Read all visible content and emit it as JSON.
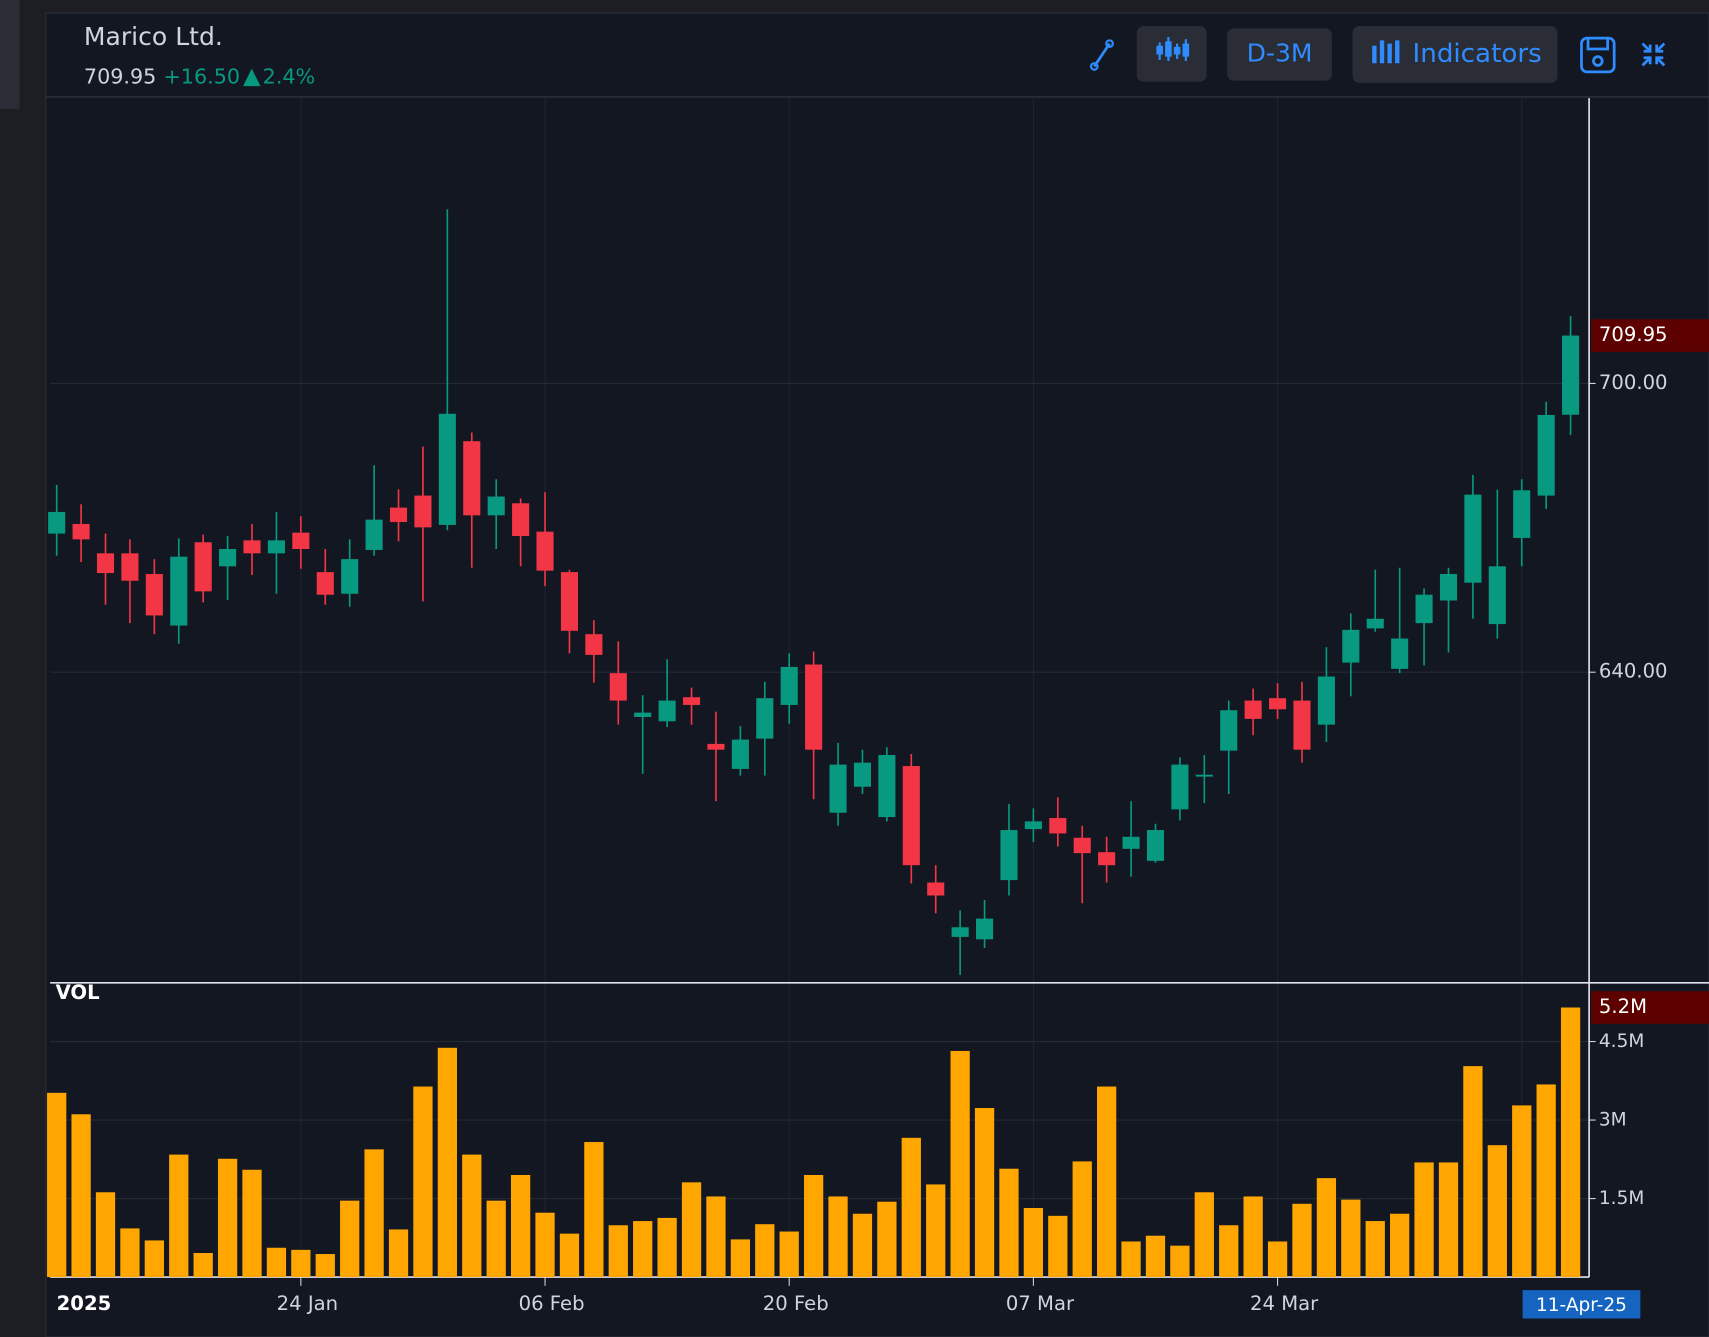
{
  "header": {
    "title": "Marico Ltd.",
    "change": {
      "value": 16.5,
      "label": "+16.50"
    },
    "change_pct": {
      "value": 2.4,
      "label": "2.4%"
    }
  },
  "toolbar": {
    "interval": "D-3M",
    "indicators": "Indicators"
  },
  "chart_data": {
    "type": "candlestick",
    "categories": [
      "2025",
      null,
      null,
      null,
      null,
      null,
      null,
      null,
      null,
      null,
      "24 Jan",
      null,
      null,
      null,
      null,
      null,
      null,
      null,
      null,
      null,
      "06 Feb",
      null,
      null,
      null,
      null,
      null,
      null,
      null,
      null,
      null,
      "20 Feb",
      null,
      null,
      null,
      null,
      null,
      null,
      null,
      null,
      null,
      "07 Mar",
      null,
      null,
      null,
      null,
      null,
      null,
      null,
      null,
      null,
      "24 Mar",
      null,
      null,
      null,
      null,
      null,
      null,
      null,
      null,
      null,
      null,
      null,
      "11-Apr-25"
    ],
    "open": [
      668.8,
      670.8,
      664.7,
      664.7,
      660.4,
      649.7,
      667.0,
      662.0,
      667.4,
      664.7,
      669.0,
      660.8,
      656.3,
      665.4,
      674.2,
      676.7,
      670.6,
      688.0,
      672.6,
      675.1,
      669.2,
      660.8,
      647.9,
      639.8,
      630.7,
      629.8,
      634.8,
      625.1,
      619.9,
      626.2,
      633.2,
      641.6,
      610.8,
      616.2,
      609.9,
      620.5,
      596.3,
      585.0,
      584.5,
      596.8,
      607.4,
      609.7,
      605.6,
      602.6,
      603.3,
      600.8,
      611.5,
      618.3,
      623.7,
      634.1,
      634.6,
      634.1,
      629.1,
      642.0,
      649.1,
      640.7,
      650.2,
      654.9,
      658.6,
      650.0,
      667.9,
      676.7,
      693.5
    ],
    "high": [
      678.9,
      674.9,
      668.8,
      667.6,
      663.5,
      667.8,
      668.6,
      668.3,
      670.8,
      673.3,
      672.4,
      665.6,
      667.6,
      683.0,
      678.0,
      686.9,
      736.2,
      689.8,
      680.1,
      676.1,
      677.4,
      661.3,
      650.8,
      646.4,
      635.2,
      642.7,
      636.8,
      631.8,
      628.8,
      638.0,
      643.9,
      644.3,
      625.3,
      623.9,
      624.4,
      623.0,
      599.9,
      590.5,
      592.7,
      612.6,
      611.7,
      614.0,
      608.1,
      605.8,
      613.2,
      608.5,
      622.3,
      622.8,
      634.1,
      636.6,
      637.7,
      638.0,
      645.2,
      652.2,
      661.3,
      661.7,
      657.4,
      661.7,
      681.0,
      677.9,
      680.1,
      696.2,
      714.0
    ],
    "low": [
      664.2,
      662.9,
      654.0,
      650.2,
      647.9,
      645.9,
      654.5,
      655.0,
      660.2,
      656.3,
      661.5,
      654.0,
      653.6,
      664.2,
      667.2,
      654.7,
      669.5,
      661.7,
      665.6,
      662.0,
      657.9,
      643.9,
      637.8,
      629.1,
      618.9,
      628.6,
      629.1,
      613.2,
      618.5,
      618.5,
      629.3,
      613.6,
      608.1,
      614.7,
      609.0,
      596.1,
      589.9,
      577.1,
      582.7,
      593.6,
      604.7,
      603.8,
      592.0,
      596.3,
      597.5,
      600.4,
      609.2,
      612.8,
      614.7,
      626.9,
      630.3,
      621.2,
      625.5,
      635.0,
      648.4,
      639.8,
      641.4,
      644.1,
      651.1,
      647.0,
      662.0,
      673.9,
      689.3
    ],
    "close": [
      673.3,
      667.6,
      660.6,
      659.0,
      651.8,
      664.0,
      656.8,
      665.6,
      664.7,
      667.4,
      665.6,
      656.1,
      663.5,
      671.7,
      671.2,
      670.1,
      693.7,
      672.6,
      676.5,
      668.3,
      661.1,
      648.6,
      643.6,
      634.1,
      631.6,
      634.1,
      633.2,
      623.9,
      626.0,
      634.6,
      641.1,
      623.9,
      620.8,
      621.2,
      622.8,
      599.9,
      593.6,
      587.0,
      588.8,
      607.2,
      609.0,
      606.5,
      602.4,
      599.9,
      605.8,
      607.2,
      620.8,
      618.7,
      632.1,
      630.3,
      632.3,
      623.9,
      639.1,
      648.8,
      651.1,
      647.0,
      656.1,
      660.4,
      676.9,
      662.0,
      677.8,
      693.45,
      709.95
    ],
    "up_color": "#089981",
    "down_color": "#f23645",
    "ylim": [
      575.9,
      759.3
    ],
    "yticks": [
      {
        "value": 640,
        "label": "640.00"
      },
      {
        "value": 700,
        "label": "700.00"
      }
    ],
    "grid": true,
    "volume": {
      "label": "VOL",
      "color": "#ffa600",
      "values": [
        3520000,
        3110000,
        1620000,
        930000,
        700000,
        2340000,
        460000,
        2260000,
        2050000,
        560000,
        520000,
        440000,
        1460000,
        2440000,
        910000,
        3640000,
        4380000,
        2340000,
        1460000,
        1950000,
        1230000,
        830000,
        2580000,
        990000,
        1070000,
        1130000,
        1810000,
        1540000,
        720000,
        1010000,
        870000,
        1950000,
        1540000,
        1210000,
        1440000,
        2660000,
        1770000,
        4320000,
        3230000,
        2070000,
        1320000,
        1170000,
        2210000,
        3640000,
        680000,
        790000,
        600000,
        1620000,
        990000,
        1540000,
        680000,
        1400000,
        1890000,
        1480000,
        1070000,
        1210000,
        2190000,
        2190000,
        4030000,
        2520000,
        3280000,
        3680000,
        5150000
      ],
      "value_labels": [
        null,
        null,
        null,
        null,
        null,
        null,
        null,
        null,
        null,
        null,
        null,
        null,
        null,
        null,
        null,
        null,
        null,
        null,
        null,
        null,
        null,
        null,
        null,
        null,
        null,
        null,
        null,
        null,
        null,
        null,
        null,
        null,
        null,
        null,
        null,
        null,
        null,
        null,
        null,
        null,
        null,
        null,
        null,
        null,
        null,
        null,
        null,
        null,
        null,
        null,
        null,
        null,
        null,
        null,
        null,
        null,
        null,
        null,
        null,
        null,
        null,
        null,
        "5.2M"
      ],
      "ylim": [
        0,
        5600000
      ],
      "yticks": [
        {
          "value": 1500000,
          "label": "1.5M"
        },
        {
          "value": 3000000,
          "label": "3M"
        },
        {
          "value": 4500000,
          "label": "4.5M"
        }
      ]
    }
  }
}
